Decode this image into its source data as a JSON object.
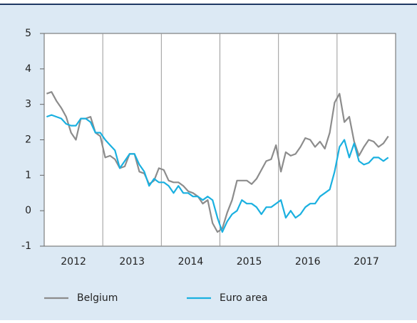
{
  "chart_data": {
    "type": "line",
    "categories": [
      null,
      null,
      null,
      null,
      null,
      null,
      "2012",
      null,
      null,
      null,
      null,
      null,
      null,
      null,
      null,
      null,
      null,
      null,
      "2013",
      null,
      null,
      null,
      null,
      null,
      null,
      null,
      null,
      null,
      null,
      null,
      "2014",
      null,
      null,
      null,
      null,
      null,
      null,
      null,
      null,
      null,
      null,
      null,
      "2015",
      null,
      null,
      null,
      null,
      null,
      null,
      null,
      null,
      null,
      null,
      null,
      "2016",
      null,
      null,
      null,
      null,
      null,
      null,
      null,
      null,
      null,
      null,
      null,
      "2017",
      null,
      null,
      null,
      null
    ],
    "series": [
      {
        "name": "Belgium",
        "color": "#8c8c8c",
        "values": [
          3.3,
          3.35,
          3.1,
          2.9,
          2.65,
          2.2,
          2.0,
          2.6,
          2.6,
          2.65,
          2.2,
          2.1,
          1.5,
          1.55,
          1.45,
          1.2,
          1.25,
          1.6,
          1.6,
          1.1,
          1.05,
          0.75,
          0.85,
          1.2,
          1.15,
          0.85,
          0.8,
          0.8,
          0.7,
          0.55,
          0.5,
          0.4,
          0.2,
          0.3,
          -0.35,
          -0.6,
          -0.5,
          -0.05,
          0.3,
          0.85,
          0.85,
          0.85,
          0.75,
          0.9,
          1.15,
          1.4,
          1.45,
          1.85,
          1.1,
          1.65,
          1.55,
          1.6,
          1.8,
          2.05,
          2.0,
          1.8,
          1.95,
          1.75,
          2.2,
          3.05,
          3.3,
          2.5,
          2.65,
          1.95,
          1.55,
          1.8,
          2.0,
          1.95,
          1.8,
          1.9,
          2.1
        ]
      },
      {
        "name": "Euro area",
        "color": "#1ab0e0",
        "values": [
          2.65,
          2.7,
          2.65,
          2.6,
          2.45,
          2.4,
          2.4,
          2.6,
          2.6,
          2.5,
          2.2,
          2.2,
          2.0,
          1.85,
          1.7,
          1.2,
          1.4,
          1.6,
          1.6,
          1.3,
          1.1,
          0.7,
          0.9,
          0.8,
          0.8,
          0.7,
          0.5,
          0.7,
          0.5,
          0.5,
          0.4,
          0.4,
          0.3,
          0.4,
          0.3,
          -0.2,
          -0.6,
          -0.3,
          -0.1,
          0.0,
          0.3,
          0.2,
          0.2,
          0.1,
          -0.1,
          0.1,
          0.1,
          0.2,
          0.3,
          -0.2,
          0.0,
          -0.2,
          -0.1,
          0.1,
          0.2,
          0.2,
          0.4,
          0.5,
          0.6,
          1.1,
          1.8,
          2.0,
          1.5,
          1.9,
          1.4,
          1.3,
          1.35,
          1.5,
          1.5,
          1.4,
          1.5
        ]
      }
    ],
    "ylim": [
      -1,
      5
    ],
    "yticks": [
      -1,
      0,
      1,
      2,
      3,
      4,
      5
    ],
    "legend": "bottom"
  }
}
